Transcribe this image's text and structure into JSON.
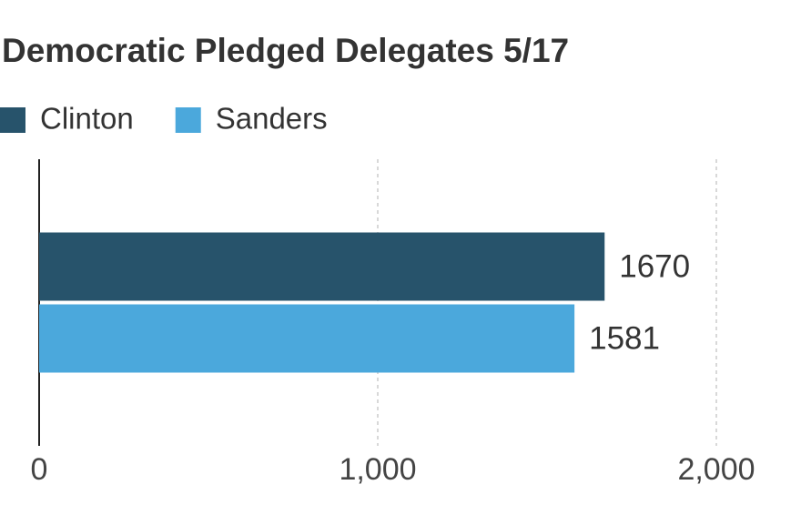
{
  "chart_data": {
    "type": "bar",
    "orientation": "horizontal",
    "title": "Democratic Pledged Delegates 5/17",
    "categories": [
      null
    ],
    "series": [
      {
        "name": "Clinton",
        "color": "#27536b",
        "values": [
          1670
        ]
      },
      {
        "name": "Sanders",
        "color": "#4ba8dc",
        "values": [
          1581
        ]
      }
    ],
    "xlim": [
      0,
      2000
    ],
    "xticks": [
      0,
      {
        "value": 1000,
        "label": "1,000"
      },
      {
        "value": 2000,
        "label": "2,000"
      }
    ],
    "grid": true
  }
}
